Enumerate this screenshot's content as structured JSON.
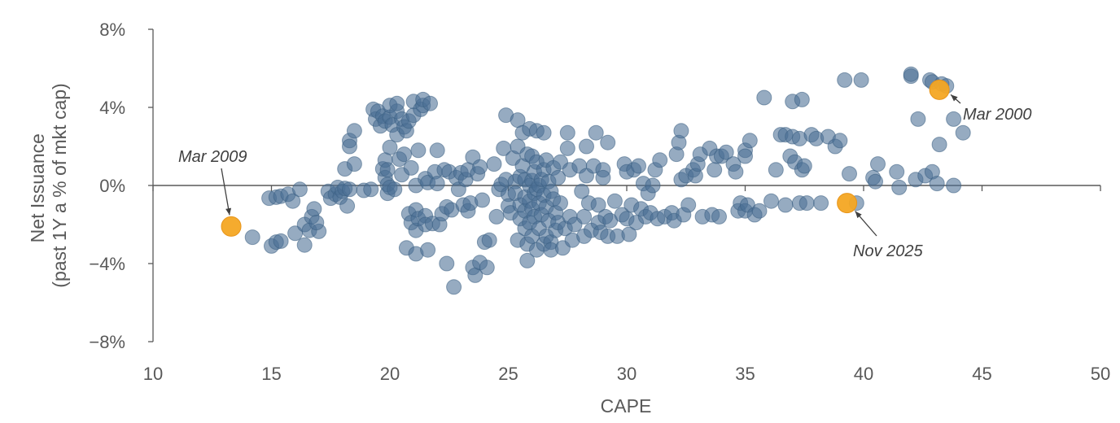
{
  "chart_data": {
    "type": "scatter",
    "xlabel": "CAPE",
    "ylabel_lines": [
      "Net Issuance",
      "(past 1Y a % of mkt cap)"
    ],
    "xlim": [
      10,
      50
    ],
    "ylim": [
      -8,
      8
    ],
    "x_ticks": [
      10,
      15,
      20,
      25,
      30,
      35,
      40,
      45,
      50
    ],
    "y_ticks": [
      8,
      4,
      0,
      -4,
      -8
    ],
    "x_tick_labels": [
      "10",
      "15",
      "20",
      "25",
      "30",
      "35",
      "40",
      "45",
      "50"
    ],
    "y_tick_labels": [
      "8%",
      "4%",
      "0%",
      "−4%",
      "−8%"
    ],
    "grid": false,
    "colors": {
      "points": "#4a6f94",
      "highlight": "#f4a623",
      "axis": "#595959",
      "text": "#595959",
      "annotation": "#404040"
    },
    "highlights": [
      {
        "label": "Mar 2009",
        "x": 13.3,
        "y": -2.1
      },
      {
        "label": "Mar 2000",
        "x": 43.2,
        "y": 4.9
      },
      {
        "label": "Nov 2025",
        "x": 39.3,
        "y": -0.9
      }
    ],
    "points": [
      [
        14.2,
        -2.65
      ],
      [
        15.0,
        -3.1
      ],
      [
        15.2,
        -2.9
      ],
      [
        15.4,
        -2.85
      ],
      [
        14.9,
        -0.65
      ],
      [
        15.2,
        -0.6
      ],
      [
        15.4,
        -0.55
      ],
      [
        15.7,
        -0.45
      ],
      [
        15.9,
        -0.8
      ],
      [
        16.2,
        -0.2
      ],
      [
        16.0,
        -2.45
      ],
      [
        16.4,
        -3.05
      ],
      [
        16.4,
        -2.0
      ],
      [
        16.6,
        -2.3
      ],
      [
        16.7,
        -1.6
      ],
      [
        16.8,
        -1.2
      ],
      [
        17.0,
        -2.35
      ],
      [
        16.9,
        -1.9
      ],
      [
        17.4,
        -0.3
      ],
      [
        17.5,
        -0.65
      ],
      [
        17.7,
        -0.45
      ],
      [
        17.8,
        -0.1
      ],
      [
        17.9,
        -0.6
      ],
      [
        18.0,
        -0.3
      ],
      [
        18.1,
        -0.15
      ],
      [
        18.1,
        0.85
      ],
      [
        18.2,
        -1.05
      ],
      [
        18.3,
        -0.2
      ],
      [
        18.3,
        2.3
      ],
      [
        18.3,
        2.0
      ],
      [
        18.5,
        2.8
      ],
      [
        18.5,
        1.1
      ],
      [
        18.9,
        -0.25
      ],
      [
        19.2,
        -0.2
      ],
      [
        19.3,
        3.9
      ],
      [
        19.4,
        3.4
      ],
      [
        19.5,
        3.8
      ],
      [
        19.6,
        3.05
      ],
      [
        19.7,
        3.55
      ],
      [
        19.7,
        0.85
      ],
      [
        19.8,
        3.3
      ],
      [
        19.8,
        1.3
      ],
      [
        19.8,
        0.4
      ],
      [
        19.9,
        -0.4
      ],
      [
        19.9,
        0.8
      ],
      [
        19.9,
        0.05
      ],
      [
        20.0,
        -0.1
      ],
      [
        20.0,
        3.5
      ],
      [
        20.0,
        4.1
      ],
      [
        20.0,
        1.95
      ],
      [
        20.1,
        3.1
      ],
      [
        20.2,
        -0.2
      ],
      [
        20.3,
        3.8
      ],
      [
        20.3,
        4.2
      ],
      [
        20.3,
        2.6
      ],
      [
        20.4,
        1.35
      ],
      [
        20.5,
        3.4
      ],
      [
        20.5,
        0.55
      ],
      [
        20.6,
        3.0
      ],
      [
        20.6,
        1.6
      ],
      [
        20.7,
        2.8
      ],
      [
        20.7,
        -3.2
      ],
      [
        20.8,
        3.3
      ],
      [
        20.8,
        -1.45
      ],
      [
        20.9,
        0.9
      ],
      [
        20.9,
        -1.9
      ],
      [
        21.0,
        3.6
      ],
      [
        21.0,
        4.3
      ],
      [
        21.1,
        0.0
      ],
      [
        21.1,
        -1.25
      ],
      [
        21.1,
        -2.3
      ],
      [
        21.1,
        -3.5
      ],
      [
        21.2,
        1.8
      ],
      [
        21.2,
        -1.7
      ],
      [
        21.3,
        3.9
      ],
      [
        21.4,
        4.1
      ],
      [
        21.4,
        4.4
      ],
      [
        21.5,
        0.35
      ],
      [
        21.5,
        -1.55
      ],
      [
        21.5,
        -2.0
      ],
      [
        21.6,
        0.15
      ],
      [
        21.6,
        -3.3
      ],
      [
        21.7,
        4.2
      ],
      [
        21.8,
        -1.95
      ],
      [
        21.9,
        0.7
      ],
      [
        22.0,
        1.8
      ],
      [
        22.0,
        0.1
      ],
      [
        22.1,
        -2.0
      ],
      [
        22.2,
        -1.45
      ],
      [
        22.3,
        0.8
      ],
      [
        22.4,
        -1.1
      ],
      [
        22.4,
        -4.0
      ],
      [
        22.5,
        0.7
      ],
      [
        22.6,
        -1.25
      ],
      [
        22.7,
        -5.2
      ],
      [
        22.8,
        0.4
      ],
      [
        22.9,
        -0.2
      ],
      [
        23.0,
        0.65
      ],
      [
        23.1,
        -1.0
      ],
      [
        23.2,
        0.3
      ],
      [
        23.3,
        0.8
      ],
      [
        23.3,
        -1.3
      ],
      [
        23.4,
        -0.9
      ],
      [
        23.5,
        1.45
      ],
      [
        23.5,
        -4.2
      ],
      [
        23.6,
        -4.6
      ],
      [
        23.7,
        0.6
      ],
      [
        23.8,
        0.95
      ],
      [
        23.8,
        -3.95
      ],
      [
        23.9,
        -0.75
      ],
      [
        24.0,
        -2.9
      ],
      [
        24.1,
        -4.2
      ],
      [
        24.2,
        -2.8
      ],
      [
        24.4,
        1.1
      ],
      [
        24.5,
        -1.6
      ],
      [
        24.6,
        -0.2
      ],
      [
        24.7,
        0.05
      ],
      [
        24.8,
        1.9
      ],
      [
        24.9,
        3.6
      ],
      [
        24.9,
        0.3
      ],
      [
        25.0,
        -0.45
      ],
      [
        25.0,
        -1.05
      ],
      [
        25.1,
        -1.4
      ],
      [
        25.2,
        1.4
      ],
      [
        25.3,
        0.2
      ],
      [
        25.3,
        -0.4
      ],
      [
        25.4,
        2.0
      ],
      [
        25.4,
        3.35
      ],
      [
        25.4,
        -2.8
      ],
      [
        25.5,
        0.45
      ],
      [
        25.5,
        -1.0
      ],
      [
        25.5,
        -1.7
      ],
      [
        25.6,
        1.0
      ],
      [
        25.6,
        2.7
      ],
      [
        25.7,
        0.3
      ],
      [
        25.7,
        -0.6
      ],
      [
        25.7,
        -1.3
      ],
      [
        25.7,
        -2.2
      ],
      [
        25.8,
        1.6
      ],
      [
        25.8,
        -3.0
      ],
      [
        25.8,
        -3.85
      ],
      [
        25.9,
        2.9
      ],
      [
        25.9,
        0.0
      ],
      [
        25.9,
        -0.8
      ],
      [
        25.9,
        -1.9
      ],
      [
        26.0,
        1.5
      ],
      [
        26.0,
        0.25
      ],
      [
        26.0,
        -1.2
      ],
      [
        26.0,
        -2.6
      ],
      [
        26.1,
        0.7
      ],
      [
        26.1,
        -0.4
      ],
      [
        26.1,
        -1.6
      ],
      [
        26.2,
        2.8
      ],
      [
        26.2,
        1.2
      ],
      [
        26.2,
        -0.2
      ],
      [
        26.2,
        -3.3
      ],
      [
        26.3,
        0.0
      ],
      [
        26.3,
        -0.9
      ],
      [
        26.3,
        -2.2
      ],
      [
        26.4,
        0.3
      ],
      [
        26.4,
        -1.5
      ],
      [
        26.5,
        2.7
      ],
      [
        26.5,
        0.8
      ],
      [
        26.5,
        -0.5
      ],
      [
        26.5,
        -3.0
      ],
      [
        26.6,
        1.3
      ],
      [
        26.6,
        -1.1
      ],
      [
        26.6,
        -2.6
      ],
      [
        26.7,
        0.2
      ],
      [
        26.7,
        -1.8
      ],
      [
        26.8,
        -0.3
      ],
      [
        26.8,
        -2.9
      ],
      [
        26.8,
        -3.3
      ],
      [
        26.9,
        0.9
      ],
      [
        26.9,
        -0.7
      ],
      [
        27.0,
        -1.4
      ],
      [
        27.0,
        -2.3
      ],
      [
        27.1,
        0.4
      ],
      [
        27.1,
        -1.9
      ],
      [
        27.2,
        1.2
      ],
      [
        27.2,
        -0.9
      ],
      [
        27.3,
        -3.2
      ],
      [
        27.4,
        -2.2
      ],
      [
        27.5,
        2.7
      ],
      [
        27.5,
        1.9
      ],
      [
        27.6,
        0.8
      ],
      [
        27.6,
        -1.6
      ],
      [
        27.7,
        -2.8
      ],
      [
        27.8,
        -2.0
      ],
      [
        28.0,
        1.0
      ],
      [
        28.1,
        -0.3
      ],
      [
        28.2,
        -1.6
      ],
      [
        28.2,
        -2.6
      ],
      [
        28.3,
        0.5
      ],
      [
        28.3,
        2.0
      ],
      [
        28.4,
        -0.9
      ],
      [
        28.5,
        -2.3
      ],
      [
        28.6,
        1.0
      ],
      [
        28.7,
        2.7
      ],
      [
        28.8,
        -1.0
      ],
      [
        28.8,
        -1.9
      ],
      [
        28.9,
        -2.4
      ],
      [
        29.0,
        0.8
      ],
      [
        29.0,
        0.4
      ],
      [
        29.1,
        -1.6
      ],
      [
        29.2,
        2.2
      ],
      [
        29.2,
        -2.6
      ],
      [
        29.3,
        -1.8
      ],
      [
        29.5,
        -0.8
      ],
      [
        29.6,
        -2.6
      ],
      [
        29.8,
        -1.5
      ],
      [
        29.9,
        1.1
      ],
      [
        30.0,
        0.7
      ],
      [
        30.0,
        -1.7
      ],
      [
        30.1,
        -2.5
      ],
      [
        30.2,
        -1.0
      ],
      [
        30.3,
        0.8
      ],
      [
        30.4,
        -1.9
      ],
      [
        30.5,
        1.0
      ],
      [
        30.6,
        -1.2
      ],
      [
        30.7,
        0.1
      ],
      [
        30.8,
        -1.6
      ],
      [
        30.9,
        -0.4
      ],
      [
        31.0,
        -1.4
      ],
      [
        31.1,
        0.0
      ],
      [
        31.2,
        0.8
      ],
      [
        31.3,
        -1.7
      ],
      [
        31.4,
        1.3
      ],
      [
        31.6,
        -1.6
      ],
      [
        31.9,
        -1.4
      ],
      [
        32.0,
        -1.8
      ],
      [
        32.1,
        1.6
      ],
      [
        32.2,
        2.2
      ],
      [
        32.3,
        2.8
      ],
      [
        32.3,
        0.3
      ],
      [
        32.4,
        -1.5
      ],
      [
        32.5,
        0.5
      ],
      [
        32.6,
        -1.0
      ],
      [
        32.8,
        0.8
      ],
      [
        32.9,
        0.5
      ],
      [
        33.0,
        1.1
      ],
      [
        33.1,
        1.6
      ],
      [
        33.2,
        -1.6
      ],
      [
        33.5,
        1.9
      ],
      [
        33.6,
        -1.5
      ],
      [
        33.7,
        0.8
      ],
      [
        33.8,
        1.5
      ],
      [
        33.9,
        -1.6
      ],
      [
        34.0,
        1.5
      ],
      [
        34.2,
        1.7
      ],
      [
        34.5,
        1.1
      ],
      [
        34.6,
        0.7
      ],
      [
        34.7,
        -1.3
      ],
      [
        34.8,
        -0.9
      ],
      [
        35.0,
        1.8
      ],
      [
        35.0,
        1.5
      ],
      [
        35.0,
        -1.3
      ],
      [
        35.1,
        -1.0
      ],
      [
        35.2,
        2.3
      ],
      [
        35.4,
        -1.5
      ],
      [
        35.6,
        -1.3
      ],
      [
        35.8,
        4.5
      ],
      [
        36.1,
        -0.8
      ],
      [
        36.3,
        0.8
      ],
      [
        36.5,
        2.6
      ],
      [
        36.7,
        2.6
      ],
      [
        36.7,
        -1.0
      ],
      [
        36.9,
        1.5
      ],
      [
        37.0,
        2.5
      ],
      [
        37.0,
        4.3
      ],
      [
        37.1,
        1.2
      ],
      [
        37.3,
        -0.9
      ],
      [
        37.3,
        2.4
      ],
      [
        37.4,
        4.4
      ],
      [
        37.4,
        0.8
      ],
      [
        37.5,
        1.0
      ],
      [
        37.6,
        -0.9
      ],
      [
        37.8,
        2.6
      ],
      [
        38.0,
        2.4
      ],
      [
        38.2,
        -0.9
      ],
      [
        38.5,
        2.5
      ],
      [
        38.8,
        2.0
      ],
      [
        39.0,
        2.3
      ],
      [
        39.2,
        5.4
      ],
      [
        39.4,
        0.6
      ],
      [
        39.7,
        -0.9
      ],
      [
        39.9,
        5.4
      ],
      [
        40.4,
        0.4
      ],
      [
        40.5,
        0.2
      ],
      [
        40.6,
        1.1
      ],
      [
        41.4,
        0.7
      ],
      [
        41.5,
        -0.1
      ],
      [
        42.0,
        5.6
      ],
      [
        42.0,
        5.7
      ],
      [
        42.2,
        0.3
      ],
      [
        42.3,
        3.4
      ],
      [
        42.6,
        0.5
      ],
      [
        42.8,
        5.4
      ],
      [
        42.9,
        0.7
      ],
      [
        42.9,
        5.3
      ],
      [
        43.1,
        0.1
      ],
      [
        43.2,
        2.1
      ],
      [
        43.3,
        5.2
      ],
      [
        43.5,
        5.1
      ],
      [
        43.8,
        3.4
      ],
      [
        43.8,
        0.0
      ],
      [
        44.2,
        2.7
      ]
    ]
  }
}
